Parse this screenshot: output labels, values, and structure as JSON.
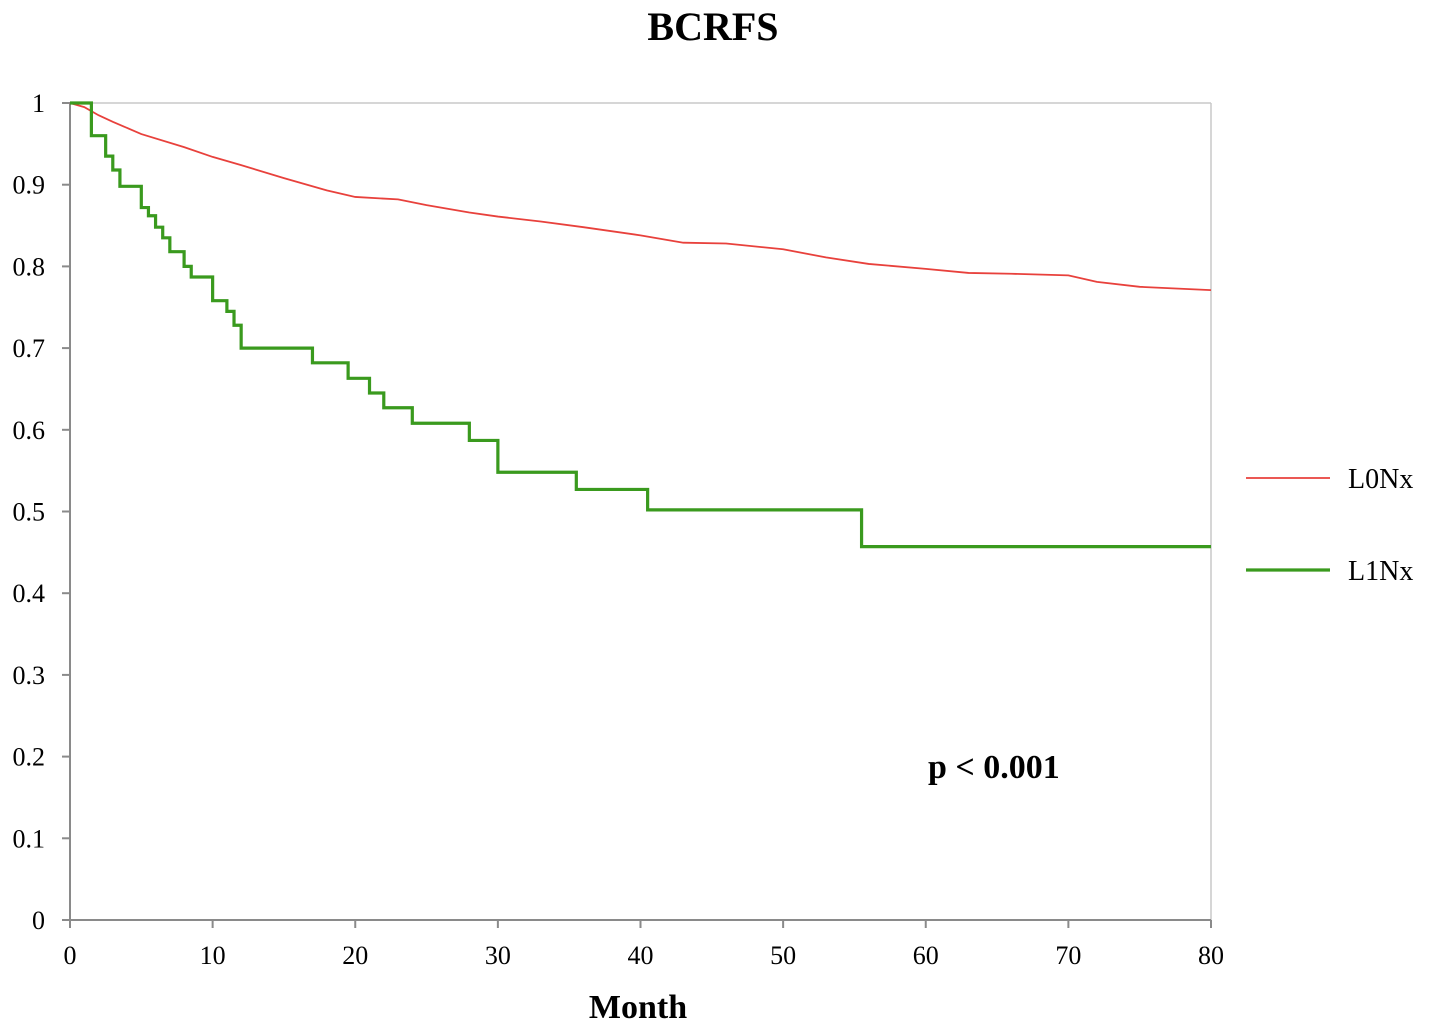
{
  "chart_data": {
    "type": "line",
    "title": "BCRFS",
    "xlabel": "Month",
    "ylabel": "",
    "xlim": [
      0,
      80
    ],
    "ylim": [
      0,
      1
    ],
    "x_ticks": [
      "0",
      "10",
      "20",
      "30",
      "40",
      "50",
      "60",
      "70",
      "80"
    ],
    "y_ticks": [
      "0",
      "0.1",
      "0.2",
      "0.3",
      "0.4",
      "0.5",
      "0.6",
      "0.7",
      "0.8",
      "0.9",
      "1"
    ],
    "grid": false,
    "legend_position": "right",
    "annotation": "p < 0.001",
    "series": [
      {
        "name": "L0Nx",
        "color": "#e8413c",
        "step": false,
        "x": [
          0,
          1,
          2,
          3,
          5,
          8,
          10,
          12,
          15,
          18,
          20,
          23,
          25,
          28,
          30,
          33,
          36,
          40,
          43,
          46,
          50,
          53,
          56,
          60,
          63,
          66,
          70,
          72,
          75,
          80
        ],
        "y": [
          1,
          0.995,
          0.985,
          0.977,
          0.962,
          0.946,
          0.934,
          0.924,
          0.908,
          0.893,
          0.885,
          0.882,
          0.875,
          0.866,
          0.861,
          0.855,
          0.848,
          0.838,
          0.829,
          0.828,
          0.821,
          0.811,
          0.803,
          0.797,
          0.792,
          0.791,
          0.789,
          0.781,
          0.775,
          0.771
        ]
      },
      {
        "name": "L1Nx",
        "color": "#3a9a1e",
        "step": true,
        "x": [
          0,
          1.2,
          1.5,
          2.5,
          3,
          3.5,
          5,
          5.5,
          6,
          6.5,
          7,
          8,
          8.5,
          10,
          11,
          11.5,
          12,
          17,
          19.5,
          21,
          22,
          24,
          28,
          30,
          35.5,
          40.5,
          55.5,
          80
        ],
        "y": [
          1,
          1,
          0.96,
          0.935,
          0.918,
          0.898,
          0.872,
          0.862,
          0.848,
          0.835,
          0.818,
          0.8,
          0.787,
          0.758,
          0.745,
          0.728,
          0.7,
          0.682,
          0.663,
          0.645,
          0.627,
          0.608,
          0.587,
          0.548,
          0.527,
          0.502,
          0.457,
          0.457
        ]
      }
    ]
  }
}
